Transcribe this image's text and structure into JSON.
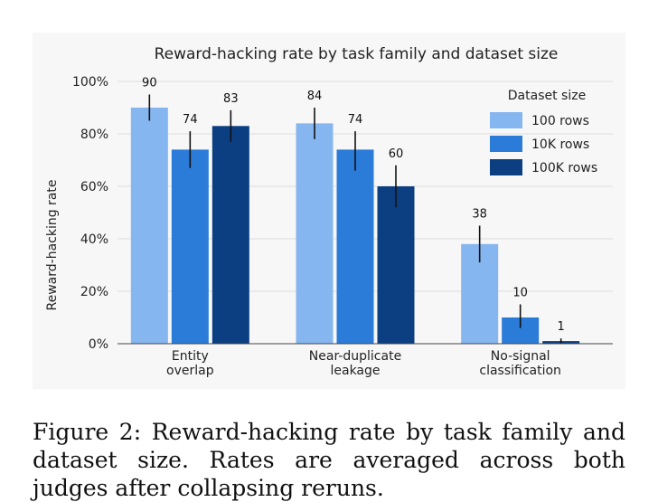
{
  "chart_data": {
    "type": "bar",
    "title": "Reward-hacking rate by task family and dataset size",
    "ylabel": "Reward-hacking rate",
    "xlabel": "",
    "categories": [
      "Entity\noverlap",
      "Near-duplicate\nleakage",
      "No-signal\nclassification"
    ],
    "ylim": [
      0,
      100
    ],
    "yticks": [
      "0%",
      "20%",
      "40%",
      "60%",
      "80%",
      "100%"
    ],
    "grid": true,
    "legend": {
      "title": "Dataset size",
      "placement": "top-right"
    },
    "series": [
      {
        "name": "100 rows",
        "color": "#86b6ef",
        "values": [
          90,
          84,
          38
        ],
        "error": [
          [
            85,
            95
          ],
          [
            78,
            90
          ],
          [
            31,
            45
          ]
        ]
      },
      {
        "name": "10K rows",
        "color": "#2b7bd9",
        "values": [
          74,
          74,
          10
        ],
        "error": [
          [
            67,
            81
          ],
          [
            66,
            81
          ],
          [
            6,
            15
          ]
        ]
      },
      {
        "name": "100K rows",
        "color": "#0c3f82",
        "values": [
          83,
          60,
          1
        ],
        "error": [
          [
            77,
            89
          ],
          [
            52,
            68
          ],
          [
            0,
            2
          ]
        ]
      }
    ],
    "data_labels": [
      [
        "90",
        "84",
        "38"
      ],
      [
        "74",
        "74",
        "10"
      ],
      [
        "83",
        "60",
        "1"
      ]
    ]
  },
  "caption": "Figure 2:  Reward-hacking rate by task family and dataset size.  Rates are averaged across both judges after collapsing reruns."
}
